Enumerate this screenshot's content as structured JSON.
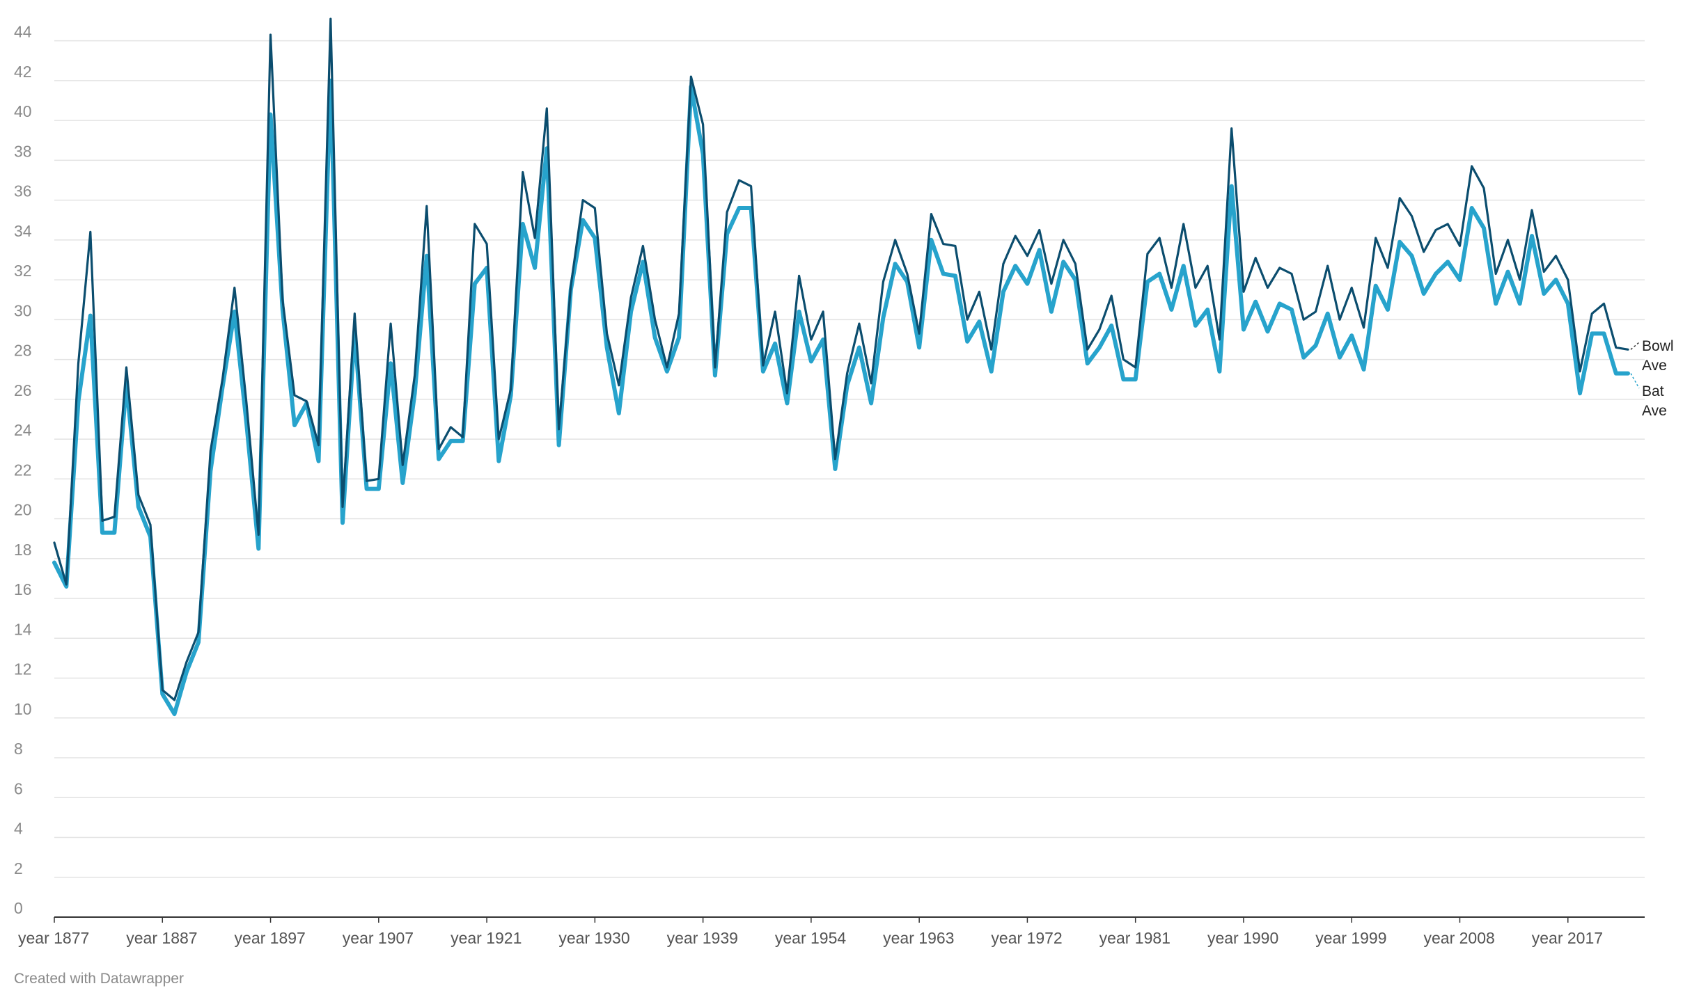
{
  "chart_data": {
    "type": "line",
    "ylim": [
      0,
      45
    ],
    "yticks": [
      0,
      2,
      4,
      6,
      8,
      10,
      12,
      14,
      16,
      18,
      20,
      22,
      24,
      26,
      28,
      30,
      32,
      34,
      36,
      38,
      40,
      42,
      44
    ],
    "grid": true,
    "legend": "direct-labels-right",
    "x_tick_labels": [
      "year 1877",
      "year 1887",
      "year 1897",
      "year 1907",
      "year 1921",
      "year 1930",
      "year 1939",
      "year 1954",
      "year 1963",
      "year 1972",
      "year 1981",
      "year 1990",
      "year 1999",
      "year 2008",
      "year 2017"
    ],
    "x_tick_index": [
      0,
      9,
      18,
      27,
      36,
      45,
      54,
      63,
      72,
      81,
      90,
      99,
      108,
      117,
      126
    ],
    "series": [
      {
        "name": "Bowl Ave",
        "color": "#0b4d6e",
        "values": [
          18.8,
          16.7,
          27.8,
          34.4,
          19.9,
          20.1,
          27.6,
          21.2,
          19.7,
          11.4,
          10.9,
          12.8,
          14.3,
          23.4,
          27.0,
          31.6,
          25.8,
          19.2,
          44.3,
          31.0,
          26.2,
          25.9,
          23.7,
          45.1,
          20.6,
          30.3,
          21.9,
          22.0,
          29.8,
          22.7,
          27.2,
          35.7,
          23.5,
          24.6,
          24.1,
          34.8,
          33.8,
          24.0,
          26.5,
          37.4,
          34.1,
          40.6,
          24.5,
          31.7,
          36.0,
          35.6,
          29.3,
          26.7,
          31.1,
          33.7,
          30.0,
          27.6,
          30.3,
          42.2,
          39.8,
          27.6,
          35.4,
          37.0,
          36.7,
          27.7,
          30.4,
          26.3,
          32.2,
          29.0,
          30.4,
          23.0,
          27.3,
          29.8,
          26.8,
          31.9,
          34.0,
          32.3,
          29.3,
          35.3,
          33.8,
          33.7,
          30.0,
          31.4,
          28.5,
          32.8,
          34.2,
          33.2,
          34.5,
          31.8,
          34.0,
          32.8,
          28.5,
          29.5,
          31.2,
          28.0,
          27.6,
          33.3,
          34.1,
          31.6,
          34.8,
          31.6,
          32.7,
          29.0,
          39.6,
          31.4,
          33.1,
          31.6,
          32.6,
          32.3,
          30.0,
          30.4,
          32.7,
          30.0,
          31.6,
          29.6,
          34.1,
          32.6,
          36.1,
          35.2,
          33.4,
          34.5,
          34.8,
          33.7,
          37.7,
          36.6,
          32.3,
          34.0,
          32.0,
          35.5,
          32.4,
          33.2,
          32.0,
          27.4,
          30.3,
          30.8,
          28.6,
          28.5
        ],
        "label": [
          "Bowl",
          "Ave"
        ]
      },
      {
        "name": "Bat Ave",
        "color": "#27a3cc",
        "values": [
          17.8,
          16.6,
          25.9,
          30.2,
          19.3,
          19.3,
          26.8,
          20.6,
          19.1,
          11.2,
          10.2,
          12.3,
          13.8,
          22.4,
          26.6,
          30.4,
          24.8,
          18.5,
          40.3,
          30.5,
          24.7,
          25.8,
          22.9,
          42.0,
          19.8,
          29.4,
          21.5,
          21.5,
          27.8,
          21.8,
          26.3,
          33.2,
          23.0,
          23.9,
          23.9,
          31.8,
          32.6,
          22.9,
          26.2,
          34.8,
          32.6,
          38.6,
          23.7,
          31.5,
          35.0,
          34.1,
          28.6,
          25.3,
          30.4,
          32.9,
          29.1,
          27.4,
          29.1,
          41.7,
          38.3,
          27.2,
          34.3,
          35.6,
          35.6,
          27.4,
          28.8,
          25.8,
          30.4,
          27.9,
          29.0,
          22.5,
          26.7,
          28.6,
          25.8,
          30.1,
          32.8,
          31.9,
          28.6,
          34.0,
          32.3,
          32.2,
          28.9,
          29.9,
          27.4,
          31.4,
          32.7,
          31.8,
          33.5,
          30.4,
          32.9,
          32.0,
          27.8,
          28.6,
          29.7,
          27.0,
          27.0,
          31.9,
          32.3,
          30.5,
          32.7,
          29.7,
          30.5,
          27.4,
          36.7,
          29.5,
          30.9,
          29.4,
          30.8,
          30.5,
          28.1,
          28.7,
          30.3,
          28.1,
          29.2,
          27.5,
          31.7,
          30.5,
          33.9,
          33.2,
          31.3,
          32.3,
          32.9,
          32.0,
          35.6,
          34.6,
          30.8,
          32.4,
          30.8,
          34.2,
          31.3,
          32.0,
          30.8,
          26.3,
          29.3,
          29.3,
          27.3,
          27.3
        ],
        "label": [
          "Bat",
          "Ave"
        ]
      }
    ]
  },
  "footer": "Created with Datawrapper"
}
